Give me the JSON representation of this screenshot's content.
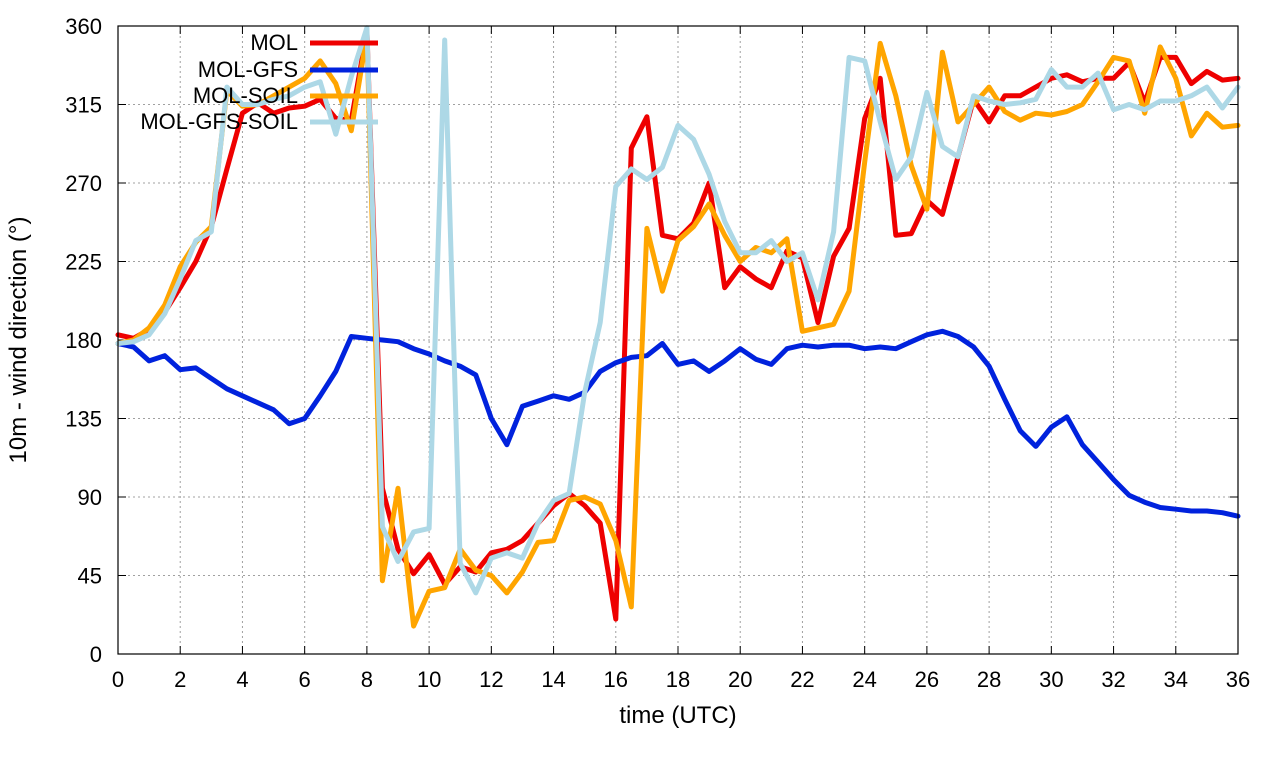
{
  "chart_data": {
    "type": "line",
    "xlabel": "time (UTC)",
    "ylabel": "10m - wind direction (°)",
    "xlim": [
      0,
      36
    ],
    "ylim": [
      0,
      360
    ],
    "xticks": [
      "0",
      "2",
      "4",
      "6",
      "8",
      "10",
      "12",
      "14",
      "16",
      "18",
      "20",
      "22",
      "24",
      "26",
      "28",
      "30",
      "32",
      "34",
      "36"
    ],
    "yticks": [
      "0",
      "45",
      "90",
      "135",
      "180",
      "225",
      "270",
      "315",
      "360"
    ],
    "grid": true,
    "legend_position": "top-left",
    "series": [
      {
        "name": "MOL",
        "color": "#ee0000",
        "x": [
          0,
          0.5,
          1,
          1.5,
          2,
          2.5,
          3,
          3.5,
          4,
          4.5,
          5,
          5.5,
          6,
          6.5,
          7,
          7.5,
          8,
          8.5,
          9,
          9.5,
          10,
          10.5,
          11,
          11.5,
          12,
          12.5,
          13,
          13.5,
          14,
          14.5,
          15,
          15.5,
          16,
          16.5,
          17,
          17.5,
          18,
          18.5,
          19,
          19.5,
          20,
          20.5,
          21,
          21.5,
          22,
          22.5,
          23,
          23.5,
          24,
          24.5,
          25,
          25.5,
          26,
          26.5,
          27,
          27.5,
          28,
          28.5,
          29,
          29.5,
          30,
          30.5,
          31,
          31.5,
          32,
          32.5,
          33,
          33.5,
          34,
          34.5,
          35,
          35.5,
          36
        ],
        "values": [
          183,
          181,
          186,
          196,
          210,
          225,
          245,
          278,
          310,
          316,
          310,
          313,
          314,
          318,
          307,
          306,
          357,
          95,
          60,
          46,
          57,
          40,
          50,
          47,
          58,
          60,
          65,
          75,
          85,
          92,
          85,
          75,
          20,
          290,
          308,
          240,
          238,
          247,
          270,
          210,
          222,
          215,
          210,
          231,
          227,
          190,
          228,
          244,
          307,
          330,
          240,
          241,
          260,
          252,
          285,
          318,
          305,
          320,
          320,
          325,
          330,
          332,
          328,
          330,
          330,
          339,
          316,
          342,
          342,
          327,
          334,
          329,
          330
        ]
      },
      {
        "name": "MOL-GFS",
        "color": "#0022dd",
        "x": [
          0,
          0.5,
          1,
          1.5,
          2,
          2.5,
          3,
          3.5,
          4,
          4.5,
          5,
          5.5,
          6,
          6.5,
          7,
          7.5,
          8,
          8.5,
          9,
          9.5,
          10,
          10.5,
          11,
          11.5,
          12,
          12.5,
          13,
          13.5,
          14,
          14.5,
          15,
          15.5,
          16,
          16.5,
          17,
          17.5,
          18,
          18.5,
          19,
          19.5,
          20,
          20.5,
          21,
          21.5,
          22,
          22.5,
          23,
          23.5,
          24,
          24.5,
          25,
          25.5,
          26,
          26.5,
          27,
          27.5,
          28,
          28.5,
          29,
          29.5,
          30,
          30.5,
          31,
          31.5,
          32,
          32.5,
          33,
          33.5,
          34,
          34.5,
          35,
          35.5,
          36
        ],
        "values": [
          178,
          176,
          168,
          171,
          163,
          164,
          158,
          152,
          148,
          144,
          140,
          132,
          135,
          148,
          162,
          182,
          181,
          180,
          179,
          175,
          172,
          168,
          165,
          160,
          135,
          120,
          142,
          145,
          148,
          146,
          150,
          162,
          167,
          170,
          171,
          178,
          166,
          168,
          162,
          168,
          175,
          169,
          166,
          175,
          177,
          176,
          177,
          177,
          175,
          176,
          175,
          179,
          183,
          185,
          182,
          176,
          165,
          146,
          128,
          119,
          130,
          136,
          120,
          110,
          100,
          91,
          87,
          84,
          83,
          82,
          82,
          81,
          79
        ]
      },
      {
        "name": "MOL-SOIL",
        "color": "#ffa500",
        "x": [
          0,
          0.5,
          1,
          1.5,
          2,
          2.5,
          3,
          3.5,
          4,
          4.5,
          5,
          5.5,
          6,
          6.5,
          7,
          7.5,
          8,
          8.5,
          9,
          9.5,
          10,
          10.5,
          11,
          11.5,
          12,
          12.5,
          13,
          13.5,
          14,
          14.5,
          15,
          15.5,
          16,
          16.5,
          17,
          17.5,
          18,
          18.5,
          19,
          19.5,
          20,
          20.5,
          21,
          21.5,
          22,
          22.5,
          23,
          23.5,
          24,
          24.5,
          25,
          25.5,
          26,
          26.5,
          27,
          27.5,
          28,
          28.5,
          29,
          29.5,
          30,
          30.5,
          31,
          31.5,
          32,
          32.5,
          33,
          33.5,
          34,
          34.5,
          35,
          35.5,
          36
        ],
        "values": [
          178,
          180,
          187,
          200,
          222,
          236,
          245,
          323,
          314,
          315,
          320,
          325,
          330,
          340,
          327,
          300,
          355,
          42,
          95,
          16,
          36,
          38,
          60,
          48,
          45,
          35,
          47,
          64,
          65,
          88,
          90,
          86,
          65,
          27,
          244,
          208,
          237,
          245,
          258,
          240,
          225,
          233,
          230,
          238,
          185,
          187,
          189,
          208,
          282,
          350,
          320,
          280,
          255,
          345,
          305,
          315,
          325,
          311,
          306,
          310,
          309,
          311,
          315,
          328,
          342,
          340,
          310,
          348,
          330,
          297,
          310,
          302,
          303
        ]
      },
      {
        "name": "MOL-GFS-SOIL",
        "color": "#add8e6",
        "x": [
          0,
          0.5,
          1,
          1.5,
          2,
          2.5,
          3,
          3.5,
          4,
          4.5,
          5,
          5.5,
          6,
          6.5,
          7,
          7.5,
          8,
          8.5,
          9,
          9.5,
          10,
          10.5,
          11,
          11.5,
          12,
          12.5,
          13,
          13.5,
          14,
          14.5,
          15,
          15.5,
          16,
          16.5,
          17,
          17.5,
          18,
          18.5,
          19,
          19.5,
          20,
          20.5,
          21,
          21.5,
          22,
          22.5,
          23,
          23.5,
          24,
          24.5,
          25,
          25.5,
          26,
          26.5,
          27,
          27.5,
          28,
          28.5,
          29,
          29.5,
          30,
          30.5,
          31,
          31.5,
          32,
          32.5,
          33,
          33.5,
          34,
          34.5,
          35,
          35.5,
          36
        ],
        "values": [
          178,
          179,
          183,
          195,
          215,
          237,
          242,
          325,
          315,
          315,
          318,
          320,
          325,
          328,
          298,
          331,
          359,
          73,
          53,
          70,
          72,
          352,
          52,
          35,
          55,
          58,
          55,
          75,
          88,
          92,
          150,
          190,
          268,
          278,
          272,
          279,
          303,
          295,
          275,
          248,
          230,
          230,
          237,
          225,
          230,
          203,
          242,
          342,
          340,
          305,
          272,
          285,
          322,
          291,
          285,
          320,
          317,
          315,
          316,
          318,
          335,
          325,
          325,
          333,
          312,
          315,
          312,
          317,
          317,
          320,
          325,
          313,
          325
        ]
      }
    ]
  }
}
